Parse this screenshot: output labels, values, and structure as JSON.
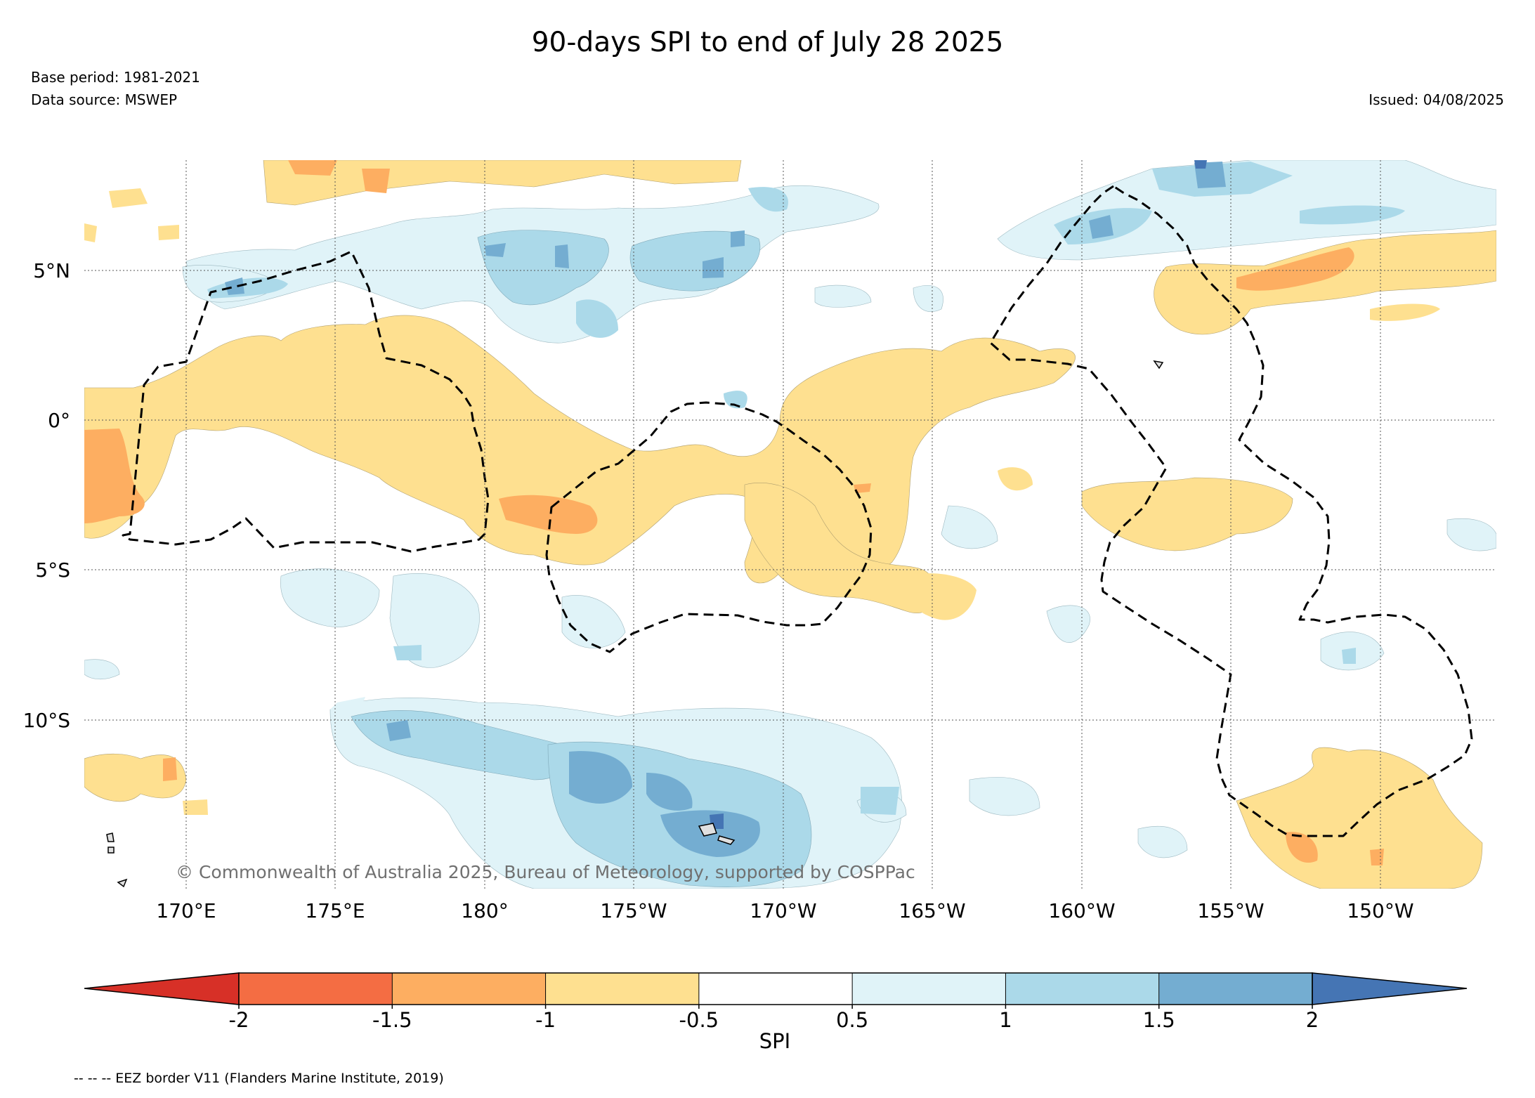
{
  "header": {
    "title": "90-days SPI to end of July 28 2025",
    "base_period": "Base period: 1981-2021",
    "data_source": "Data source: MSWEP",
    "issued": "Issued: 04/08/2025"
  },
  "map": {
    "lat_labels": [
      "5°N",
      "0°",
      "5°S",
      "10°S"
    ],
    "lon_labels": [
      "170°E",
      "175°E",
      "180°",
      "175°W",
      "170°W",
      "165°W",
      "160°W",
      "155°W",
      "150°W"
    ],
    "copyright": "© Commonwealth of Australia 2025, Bureau of Meteorology, supported by COSPPac",
    "colors": {
      "lt_-2": "#d73027",
      "-2_-1.5": "#f46d43",
      "-1.5_-1": "#fdae61",
      "-1_-0.5": "#fee090",
      "-0.5_0.5": "#ffffff",
      "0.5_1": "#e0f3f8",
      "1_1.5": "#abd9e9",
      "1.5_2": "#74add1",
      "gt_2": "#4575b4"
    }
  },
  "colorbar": {
    "ticks": [
      "-2",
      "-1.5",
      "-1",
      "-0.5",
      "0.5",
      "1",
      "1.5",
      "2"
    ],
    "label": "SPI"
  },
  "footer": {
    "eez_note": "-- -- -- EEZ border V11 (Flanders Marine Institute, 2019)"
  }
}
